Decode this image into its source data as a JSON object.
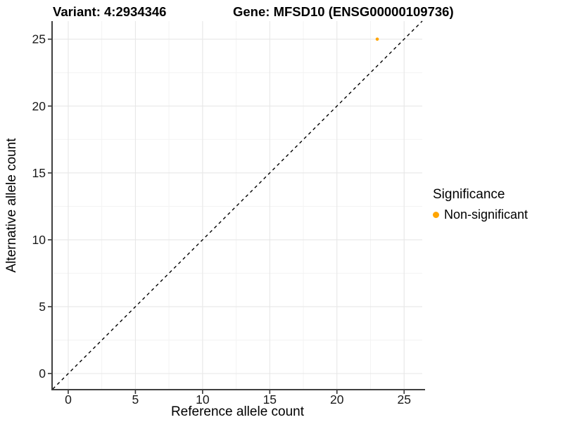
{
  "figure": {
    "titles": {
      "variant": "Variant: 4:2934346",
      "gene": "Gene: MFSD10 (ENSG00000109736)"
    },
    "legend": {
      "title": "Significance",
      "items": [
        {
          "label": "Non-significant",
          "color": "#FFA500"
        }
      ]
    }
  },
  "chart_data": {
    "type": "scatter",
    "title": "Variant: 4:2934346    Gene: MFSD10 (ENSG00000109736)",
    "xlabel": "Reference allele count",
    "ylabel": "Alternative allele count",
    "xlim": [
      -1.15,
      26.35
    ],
    "ylim": [
      -1.15,
      26.35
    ],
    "x_ticks": [
      0,
      5,
      10,
      15,
      20,
      25
    ],
    "y_ticks": [
      0,
      5,
      10,
      15,
      20,
      25
    ],
    "minor_gridlines": [
      2.5,
      7.5,
      12.5,
      17.5,
      22.5
    ],
    "grid": "on",
    "legend_position": "right",
    "identity_line": {
      "style": "dashed",
      "color": "#000000"
    },
    "series": [
      {
        "name": "Non-significant",
        "color": "#FFA500",
        "points": [
          {
            "x": 23,
            "y": 25
          }
        ]
      }
    ],
    "colors": {
      "grid_major": "#e7e7e7",
      "grid_minor": "#f3f3f3",
      "axis_line": "#404040",
      "tick_mark": "#333333",
      "tick_text": "#1a1a1a"
    }
  }
}
